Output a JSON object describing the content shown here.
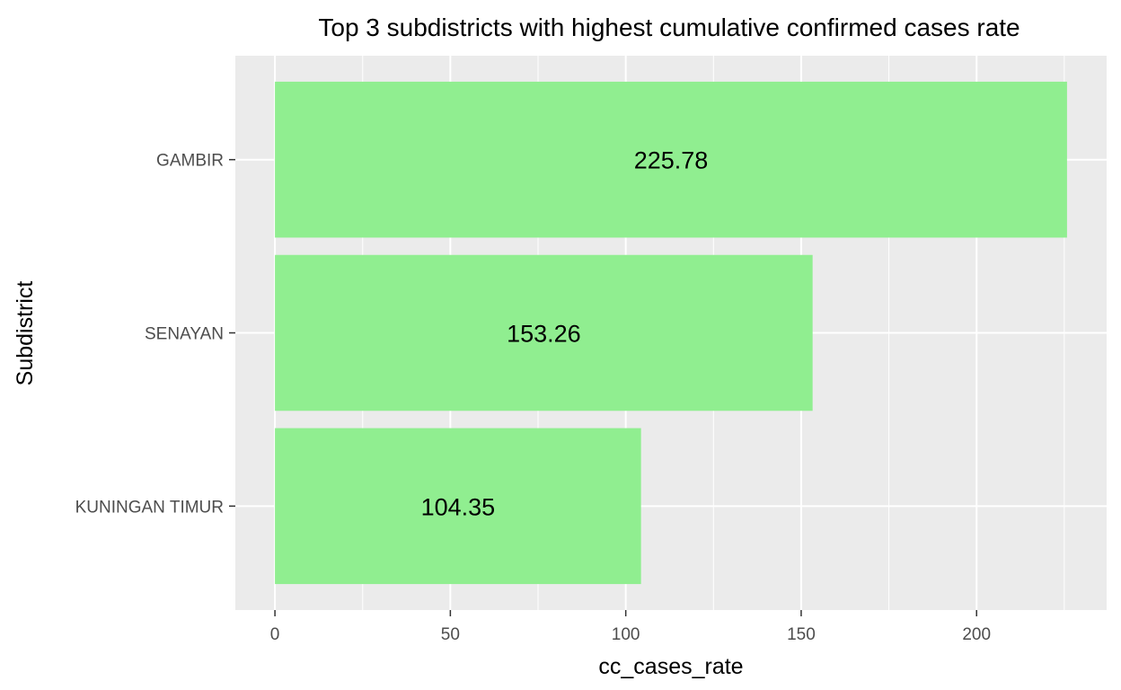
{
  "chart_data": {
    "type": "bar",
    "orientation": "horizontal",
    "title": "Top 3 subdistricts with highest cumulative confirmed cases rate",
    "xlabel": "cc_cases_rate",
    "ylabel": "Subdistrict",
    "categories": [
      "GAMBIR",
      "SENAYAN",
      "KUNINGAN TIMUR"
    ],
    "values": [
      225.78,
      153.26,
      104.35
    ],
    "data_labels": [
      "225.78",
      "153.26",
      "104.35"
    ],
    "x_ticks": [
      0,
      50,
      100,
      150,
      200
    ],
    "x_tick_labels": [
      "0",
      "50",
      "100",
      "150",
      "200"
    ],
    "xlim": [
      -11.29,
      237.07
    ],
    "grid": true,
    "legend": "none",
    "colors": {
      "bar": "#90ee90",
      "panel": "#ebebeb",
      "grid": "#ffffff",
      "text": "#000000",
      "tick_text": "#4d4d4d",
      "tick": "#333333"
    }
  }
}
